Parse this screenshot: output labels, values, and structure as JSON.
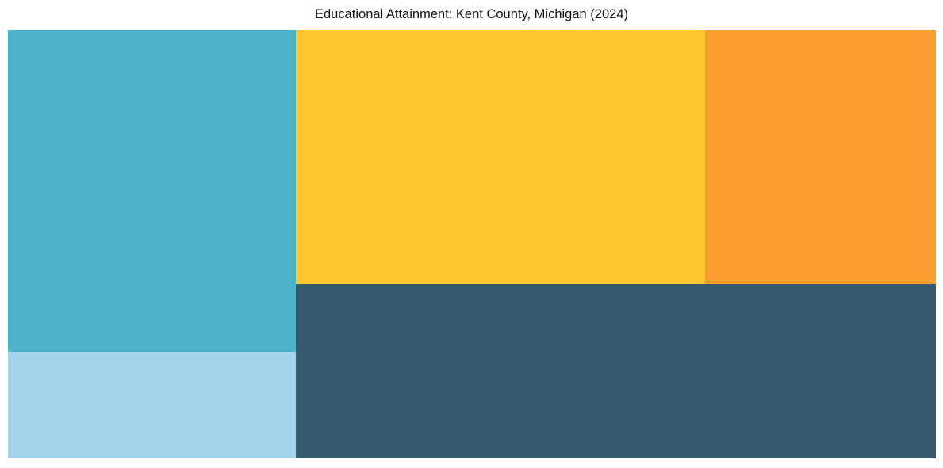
{
  "title": "Educational Attainment: Kent County, Michigan (2024)",
  "colors": {
    "background": "#ffffff",
    "title_text": "#111111",
    "teal": "#4DB1C7",
    "light_blue": "#A5D3EA",
    "yellow": "#FFC72F",
    "orange": "#FA9E33",
    "dark_slate": "#36596C"
  },
  "chart_data": {
    "type": "treemap",
    "title": "Educational Attainment: Kent County, Michigan (2024)",
    "legend": "none",
    "labels_visible": false,
    "note": "Five unlabeled solid-color tiles; values are area shares (percent of total treemap area) estimated from pixel geometry",
    "tiles": [
      {
        "name": "tile-teal",
        "color": "#4DB1C7",
        "area_pct": 23.3,
        "x_pct": 0,
        "y_pct": 0,
        "w_pct": 31.03,
        "h_pct": 75.19
      },
      {
        "name": "tile-light-blue",
        "color": "#A5D3EA",
        "area_pct": 7.7,
        "x_pct": 0,
        "y_pct": 75.19,
        "w_pct": 31.03,
        "h_pct": 24.81
      },
      {
        "name": "tile-yellow",
        "color": "#FFC72F",
        "area_pct": 26.1,
        "x_pct": 31.03,
        "y_pct": 0,
        "w_pct": 44.1,
        "h_pct": 59.26
      },
      {
        "name": "tile-orange",
        "color": "#FA9E33",
        "area_pct": 14.7,
        "x_pct": 75.13,
        "y_pct": 0,
        "w_pct": 24.87,
        "h_pct": 59.26
      },
      {
        "name": "tile-dark-slate",
        "color": "#36596C",
        "area_pct": 28.1,
        "x_pct": 31.03,
        "y_pct": 59.26,
        "w_pct": 68.97,
        "h_pct": 40.74
      }
    ]
  }
}
